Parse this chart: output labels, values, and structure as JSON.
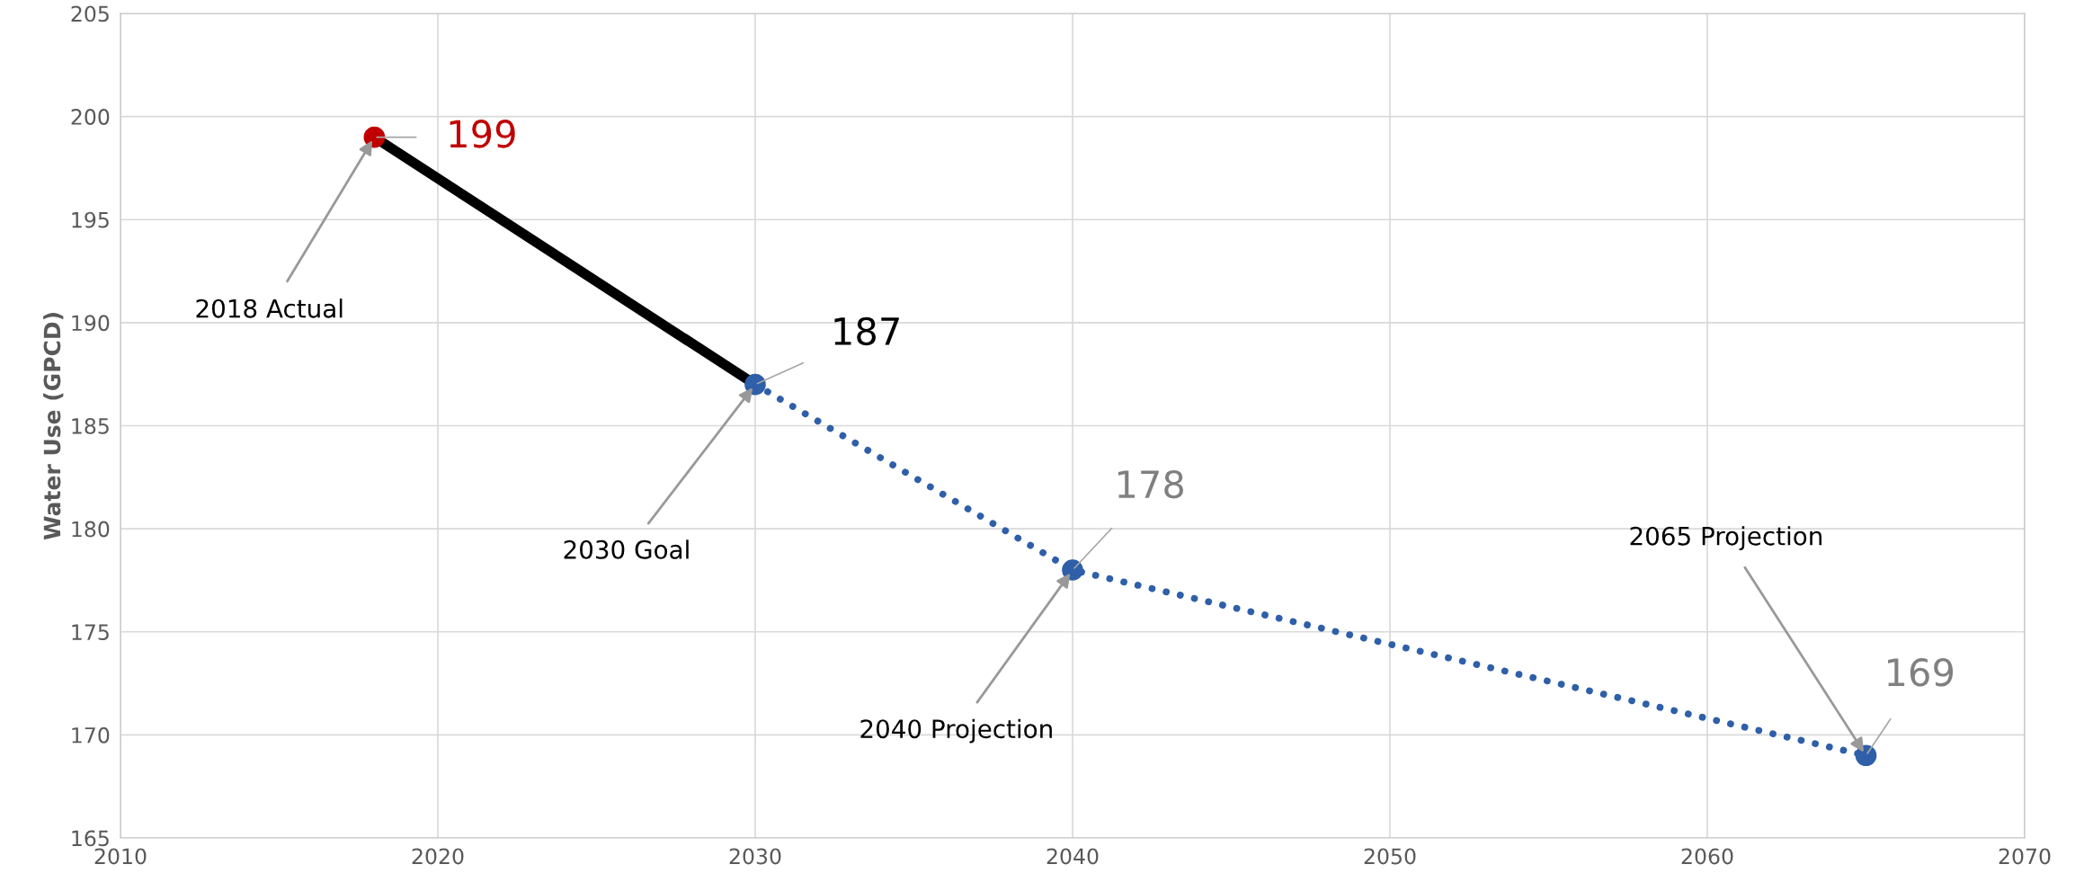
{
  "chart_data": {
    "type": "line",
    "ylabel": "Water Use (GPCD)",
    "series": [
      {
        "x": [
          2018,
          2030
        ],
        "values": [
          199,
          187
        ],
        "color": "#000000",
        "line_style": "solid",
        "marker": "none",
        "value_labels": [
          null,
          "187"
        ]
      },
      {
        "x": [
          2030,
          2040,
          2065
        ],
        "values": [
          187,
          178,
          169
        ],
        "color": "#2e5fa8",
        "line_style": "dotted",
        "marker": "circle",
        "value_labels": [
          null,
          "178",
          "169"
        ]
      },
      {
        "type": "scatter",
        "x": [
          2018
        ],
        "values": [
          199
        ],
        "color": "#c00000",
        "marker": "circle",
        "value_labels": [
          "199"
        ]
      }
    ],
    "annotations": [
      {
        "text": "2018 Actual",
        "x": 2018,
        "y": 199
      },
      {
        "text": "2030 Goal",
        "x": 2030,
        "y": 187
      },
      {
        "text": "2040 Projection",
        "x": 2040,
        "y": 178
      },
      {
        "text": "2065 Projection",
        "x": 2065,
        "y": 169
      }
    ],
    "xlim": [
      2010,
      2070
    ],
    "xticks": [
      2010,
      2020,
      2030,
      2040,
      2050,
      2060,
      2070
    ],
    "ylim": [
      165,
      205
    ],
    "yticks": [
      165,
      170,
      175,
      180,
      185,
      190,
      195,
      200,
      205
    ],
    "grid": true,
    "legend": false
  }
}
